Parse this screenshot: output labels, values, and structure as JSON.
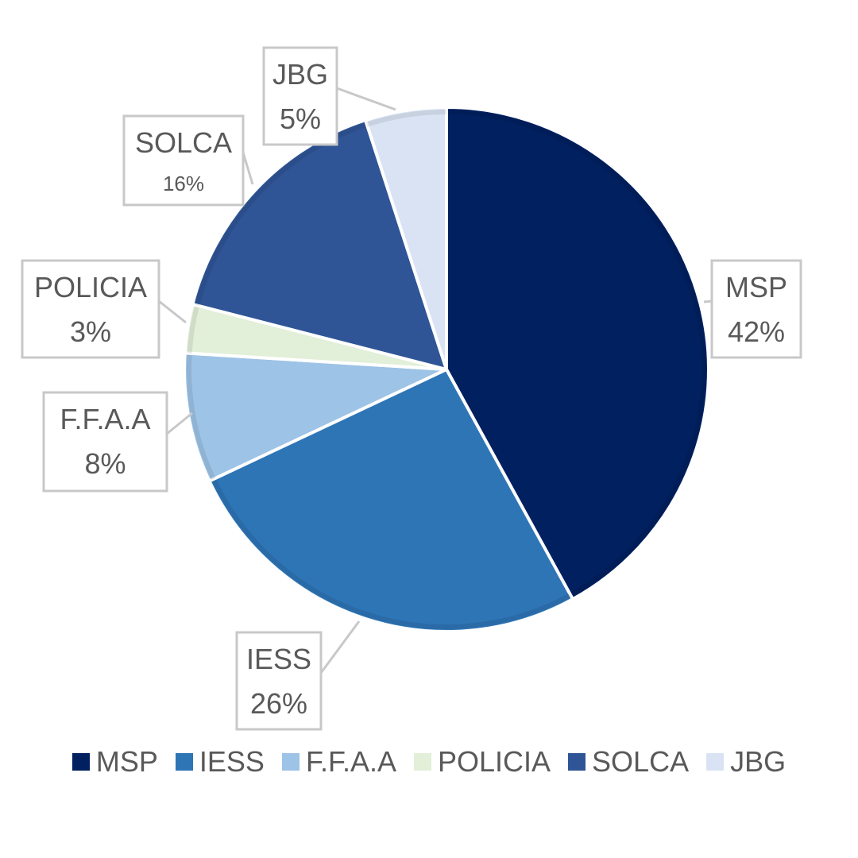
{
  "chart_data": {
    "type": "pie",
    "title": "",
    "legend_position": "bottom",
    "slices": [
      {
        "name": "MSP",
        "value": 42,
        "label": "42%",
        "color": "#002060"
      },
      {
        "name": "IESS",
        "value": 26,
        "label": "26%",
        "color": "#2e75b6"
      },
      {
        "name": "F.F.A.A",
        "value": 8,
        "label": "8%",
        "color": "#9dc3e6"
      },
      {
        "name": "POLICIA",
        "value": 3,
        "label": "3%",
        "color": "#e2efd9"
      },
      {
        "name": "SOLCA",
        "value": 16,
        "label": "16%",
        "color": "#2f5597"
      },
      {
        "name": "JBG",
        "value": 5,
        "label": "5%",
        "color": "#dae3f3"
      }
    ]
  }
}
